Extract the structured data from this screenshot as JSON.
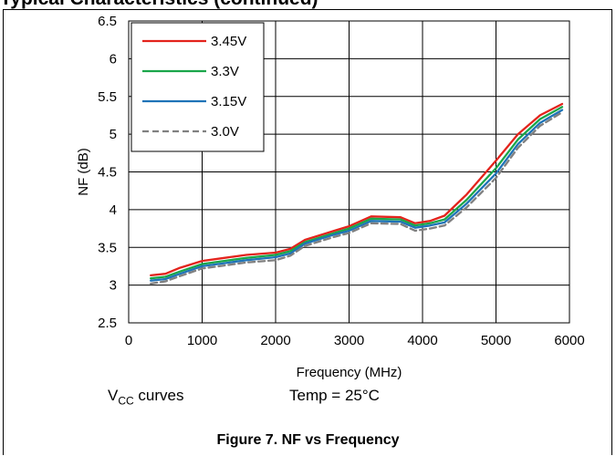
{
  "header": {
    "title": "Typical Characteristics (continued)"
  },
  "caption": "Figure 7.  NF vs Frequency",
  "notes": {
    "vcc_main": "V",
    "vcc_sub": "CC",
    "vcc_rest": " curves",
    "temp": "Temp = 25°C"
  },
  "chart_data": {
    "type": "line",
    "title": "",
    "xlabel": "Frequency (MHz)",
    "ylabel": "NF (dB)",
    "xlim": [
      0,
      6000
    ],
    "ylim": [
      2.5,
      6.5
    ],
    "xticks": [
      0,
      1000,
      2000,
      3000,
      4000,
      5000,
      6000
    ],
    "yticks": [
      2.5,
      3,
      3.5,
      4,
      4.5,
      5,
      5.5,
      6,
      6.5
    ],
    "grid": true,
    "legend_position": "top-left",
    "x": [
      300,
      500,
      700,
      1000,
      1300,
      1600,
      2000,
      2200,
      2400,
      2800,
      3000,
      3300,
      3700,
      3900,
      4100,
      4300,
      4600,
      5000,
      5300,
      5600,
      5900
    ],
    "series": [
      {
        "name": "3.45V",
        "color": "#e3231c",
        "dash": "solid",
        "values": [
          3.13,
          3.15,
          3.23,
          3.32,
          3.36,
          3.4,
          3.43,
          3.48,
          3.6,
          3.72,
          3.78,
          3.91,
          3.9,
          3.82,
          3.85,
          3.92,
          4.2,
          4.65,
          5.0,
          5.25,
          5.4
        ]
      },
      {
        "name": "3.3V",
        "color": "#1aa64a",
        "dash": "solid",
        "values": [
          3.09,
          3.11,
          3.18,
          3.28,
          3.32,
          3.36,
          3.4,
          3.45,
          3.57,
          3.69,
          3.75,
          3.88,
          3.87,
          3.79,
          3.82,
          3.87,
          4.13,
          4.55,
          4.93,
          5.2,
          5.36
        ]
      },
      {
        "name": "3.15V",
        "color": "#1f73b7",
        "dash": "solid",
        "values": [
          3.06,
          3.08,
          3.15,
          3.25,
          3.29,
          3.33,
          3.37,
          3.42,
          3.55,
          3.67,
          3.72,
          3.85,
          3.84,
          3.76,
          3.79,
          3.83,
          4.08,
          4.48,
          4.87,
          5.15,
          5.32
        ]
      },
      {
        "name": "3.0V",
        "color": "#808080",
        "dash": "dashed",
        "values": [
          3.02,
          3.05,
          3.12,
          3.22,
          3.26,
          3.3,
          3.33,
          3.39,
          3.52,
          3.64,
          3.69,
          3.82,
          3.81,
          3.72,
          3.75,
          3.79,
          4.03,
          4.42,
          4.82,
          5.11,
          5.29
        ]
      }
    ]
  }
}
